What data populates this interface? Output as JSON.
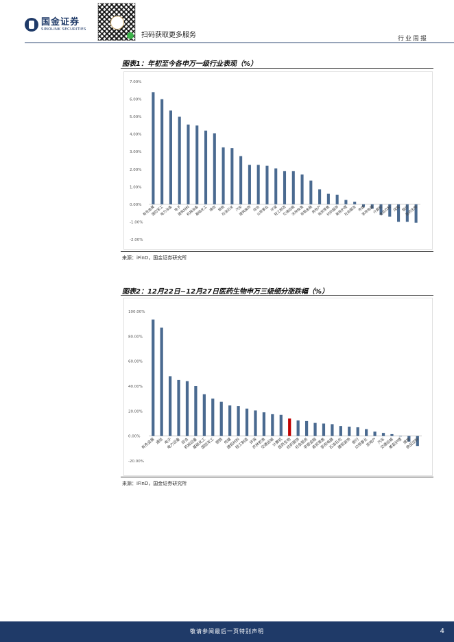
{
  "header": {
    "logo_cn": "国金证券",
    "logo_en": "SINOLINK SECURITIES",
    "scan_text": "扫码获取更多服务",
    "report_type": "行业周报"
  },
  "figure1": {
    "title": "图表1：年初至今各申万一级行业表现（%）",
    "source": "来源：iFinD，国金证券研究所"
  },
  "figure2": {
    "title": "图表2：12月22日~12月27日医药生物申万三级细分涨跌幅（%）",
    "source": "来源：iFinD，国金证券研究所"
  },
  "chart_data": [
    {
      "type": "bar",
      "categories": [
        "有色金属",
        "国防军工",
        "电力设备",
        "电子",
        "建筑材料",
        "机械设备",
        "基础化工",
        "通信",
        "钢铁",
        "石油石化",
        "汽车",
        "建筑装饰",
        "综合",
        "公用事业",
        "环保",
        "轻工制造",
        "交通运输",
        "农林牧渔",
        "非银金融",
        "房地产",
        "商贸零售",
        "纺织服饰",
        "美容护理",
        "社会服务",
        "传媒",
        "家用电器",
        "计算机",
        "食品饮料",
        "煤炭",
        "银行",
        "医药生物"
      ],
      "values": [
        6.4,
        6.0,
        5.35,
        5.0,
        4.55,
        4.5,
        4.2,
        4.05,
        3.25,
        3.2,
        2.75,
        2.25,
        2.25,
        2.2,
        2.05,
        1.9,
        1.9,
        1.7,
        1.35,
        0.85,
        0.6,
        0.55,
        0.25,
        0.15,
        -0.15,
        -0.25,
        -0.6,
        -0.7,
        -1.0,
        -1.0,
        -1.05
      ],
      "ylim": [
        -2,
        7
      ],
      "yticks": [
        "-2.00%",
        "-1.00%",
        "0.00%",
        "1.00%",
        "2.00%",
        "3.00%",
        "4.00%",
        "5.00%",
        "6.00%",
        "7.00%"
      ],
      "bar_color": "#4a6a90"
    },
    {
      "type": "bar",
      "categories": [
        "有色金属",
        "通信",
        "电子",
        "电力设备",
        "综合",
        "机械设备",
        "基础化工",
        "国防军工",
        "钢铁",
        "传媒",
        "建筑材料",
        "轻工制造",
        "环保",
        "农林牧渔",
        "交通运输",
        "计算机",
        "医药生物",
        "纺织服饰",
        "社会服务",
        "非银金融",
        "商贸零售",
        "家用电器",
        "石油石化",
        "建筑装饰",
        "银行",
        "公用事业",
        "房地产",
        "汽车",
        "交通运输",
        "美容护理",
        "煤炭",
        "食品饮料"
      ],
      "values": [
        93.5,
        87.0,
        48.0,
        45.0,
        44.0,
        40.0,
        33.5,
        30.0,
        27.5,
        24.5,
        24.0,
        22.0,
        20.5,
        19.0,
        17.5,
        17.0,
        14.0,
        12.5,
        12.0,
        10.5,
        10.0,
        9.5,
        8.0,
        7.5,
        7.0,
        5.5,
        3.5,
        2.5,
        1.5,
        0.0,
        -4.5,
        -8.0
      ],
      "highlight_index": 16,
      "ylim": [
        -20,
        100
      ],
      "yticks": [
        "-20.00%",
        "0.00%",
        "20.00%",
        "40.00%",
        "60.00%",
        "80.00%",
        "100.00%"
      ],
      "bar_color": "#4a6a90",
      "highlight_color": "#c00000"
    }
  ],
  "footer": {
    "disclaimer": "敬请参阅最后一页特别声明",
    "page_number": "4"
  }
}
